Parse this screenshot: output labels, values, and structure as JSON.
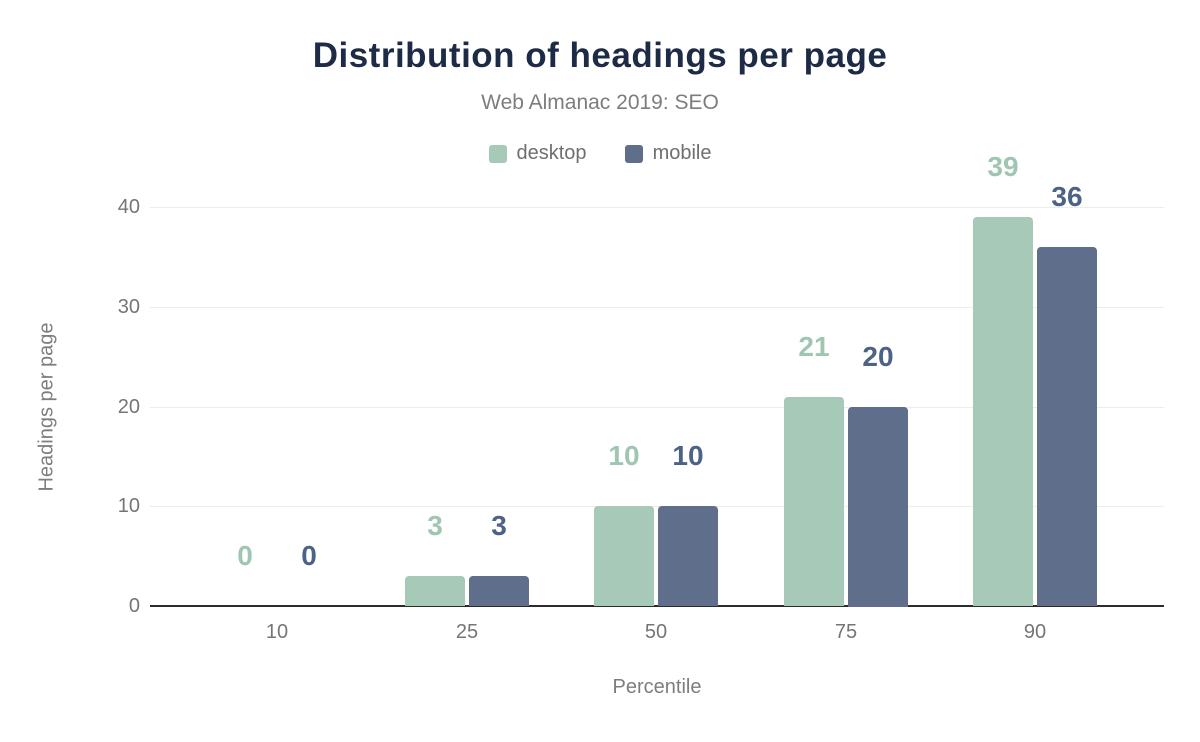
{
  "chart_data": {
    "type": "bar",
    "title": "Distribution of headings per page",
    "subtitle": "Web Almanac 2019: SEO",
    "xlabel": "Percentile",
    "ylabel": "Headings per page",
    "categories": [
      "10",
      "25",
      "50",
      "75",
      "90"
    ],
    "series": [
      {
        "name": "desktop",
        "bar_color": "#a7c9b8",
        "label_color": "#9fc6b1",
        "values": [
          0,
          3,
          10,
          21,
          39
        ]
      },
      {
        "name": "mobile",
        "bar_color": "#5f6f8b",
        "label_color": "#4d6287",
        "values": [
          0,
          3,
          10,
          20,
          36
        ]
      }
    ],
    "y_ticks": [
      0,
      10,
      20,
      30,
      40
    ],
    "ylim": [
      0,
      40
    ],
    "grid": true,
    "legend_position": "top"
  },
  "colors": {
    "title_text": "#1e2b47",
    "subtitle_text": "#7d7d7d",
    "axis_text": "#757575",
    "gridline": "#ececec",
    "baseline": "#2b2b2b",
    "background": "#ffffff"
  }
}
